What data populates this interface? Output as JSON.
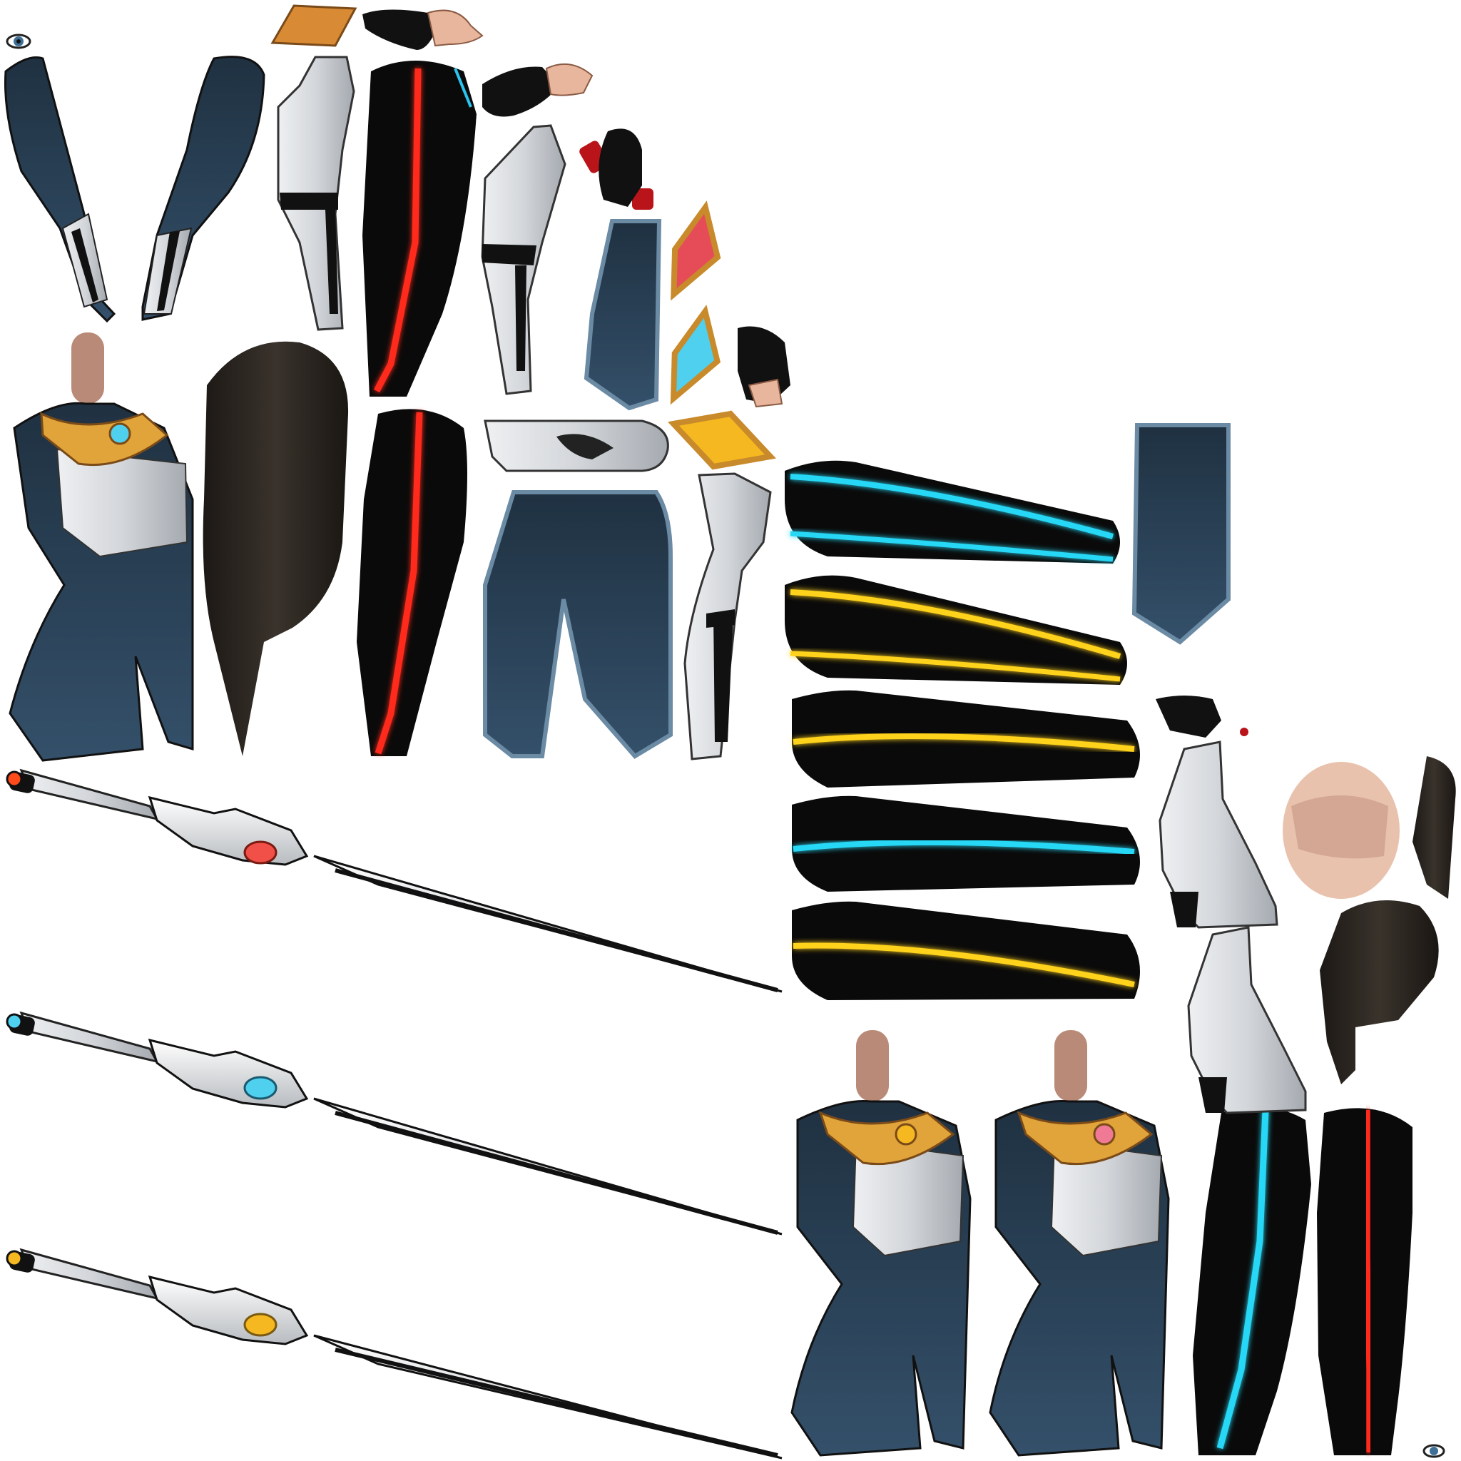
{
  "atlas": {
    "kind": "character texture atlas",
    "background": "#ffffff"
  },
  "colors": {
    "coat": "#2c4257",
    "coat_dark": "#1d2e3e",
    "coat_edge": "#6b8aa4",
    "armor": "#d5d8dc",
    "armor_shadow": "#a2a7ad",
    "black": "#0a0a0a",
    "hair": "#2a2520",
    "skin": "#b98a77",
    "gold": "#e0a43a",
    "glow_red": "#ff2a1a",
    "glow_cyan": "#26d8f5",
    "glow_yellow": "#ffd21a",
    "gem_red": "#f05048",
    "gem_cyan": "#4fd0ef",
    "gem_yellow": "#f5b820",
    "blade": "#e6e8ea"
  },
  "parts": [
    {
      "name": "eye",
      "count": 2
    },
    {
      "name": "coat-sleeve",
      "count": 2
    },
    {
      "name": "armored-leg",
      "count": 4
    },
    {
      "name": "glove-hand",
      "count": 4
    },
    {
      "name": "crystal-gem",
      "count": 4
    },
    {
      "name": "torso",
      "variant": "cyan",
      "count": 1
    },
    {
      "name": "torso",
      "variant": "yellow",
      "count": 1
    },
    {
      "name": "torso",
      "variant": "pink",
      "count": 1
    },
    {
      "name": "hair-ponytail",
      "count": 1
    },
    {
      "name": "hair-bangs",
      "count": 2
    },
    {
      "name": "legging",
      "variant": "red",
      "count": 3
    },
    {
      "name": "legging",
      "variant": "cyan",
      "count": 1
    },
    {
      "name": "coat-skirt",
      "count": 2
    },
    {
      "name": "sleeve-glow",
      "variant": "cyan",
      "count": 2
    },
    {
      "name": "sleeve-glow",
      "variant": "yellow",
      "count": 3
    },
    {
      "name": "boot",
      "count": 2
    },
    {
      "name": "face",
      "count": 1
    },
    {
      "name": "sword",
      "variant": "red",
      "count": 1
    },
    {
      "name": "sword",
      "variant": "cyan",
      "count": 1
    },
    {
      "name": "sword",
      "variant": "yellow",
      "count": 1
    }
  ]
}
